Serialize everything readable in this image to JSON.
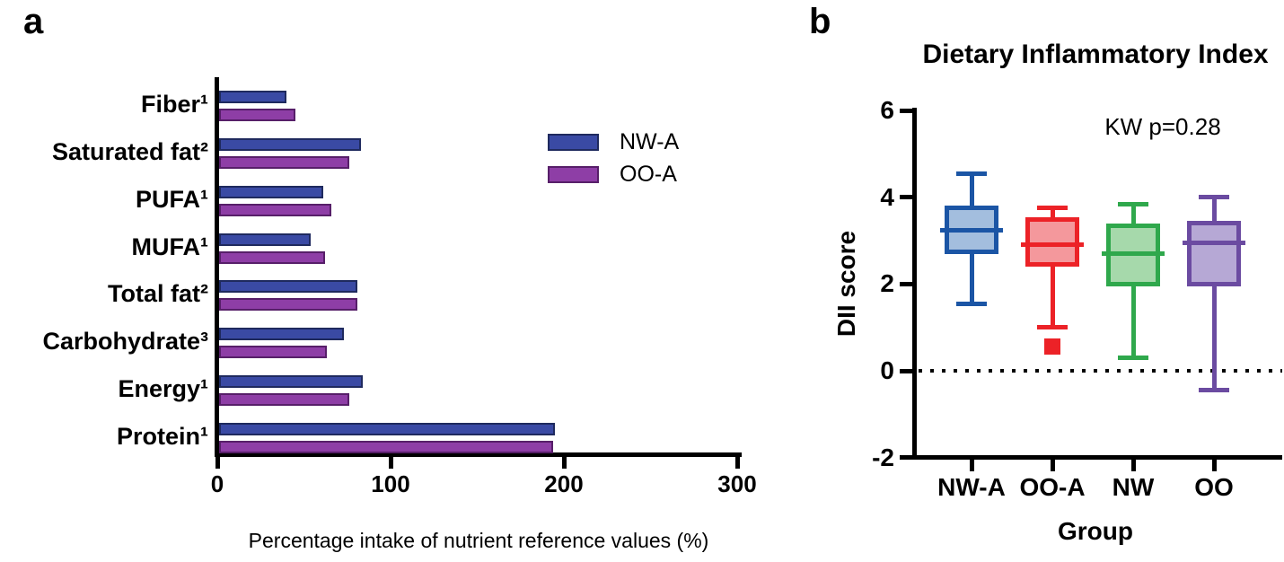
{
  "panels": {
    "a": "a",
    "b": "b"
  },
  "chart_data": [
    {
      "type": "bar",
      "panel": "a",
      "orientation": "horizontal",
      "title": "",
      "xlabel": "Percentage intake of nutrient reference values (%)",
      "xlim": [
        0,
        300
      ],
      "xticks": [
        "0",
        "100",
        "200",
        "300"
      ],
      "categories": [
        "Fiber¹",
        "Saturated fat²",
        "PUFA¹",
        "MUFA¹",
        "Total fat²",
        "Carbohydrate³",
        "Energy¹",
        "Protein¹"
      ],
      "series": [
        {
          "name": "NW-A",
          "color": "#3A4AA4",
          "edge": "#1F2A5E",
          "values": [
            40,
            83,
            61,
            54,
            81,
            73,
            84,
            195
          ]
        },
        {
          "name": "OO-A",
          "color": "#8E3EA6",
          "edge": "#571F69",
          "values": [
            45,
            76,
            66,
            62,
            81,
            63,
            76,
            194
          ]
        }
      ],
      "legend_position": "upper right",
      "grid": false
    },
    {
      "type": "box",
      "panel": "b",
      "title": "Dietary Inflammatory Index",
      "annotation": "KW p=0.28",
      "xlabel": "Group",
      "ylabel": "DII score",
      "ylim": [
        -2,
        6
      ],
      "yticks": [
        "6",
        "4",
        "2",
        "0",
        "-2"
      ],
      "zero_line": {
        "value": 0,
        "style": "dotted"
      },
      "groups": [
        {
          "name": "NW-A",
          "stroke": "#1B55A5",
          "fill": "#A3BEDE",
          "whisker_low": 1.55,
          "q1": 2.7,
          "median": 3.25,
          "q3": 3.8,
          "whisker_high": 4.55,
          "outliers": []
        },
        {
          "name": "OO-A",
          "stroke": "#EC2227",
          "fill": "#F4989C",
          "whisker_low": 1.0,
          "q1": 2.4,
          "median": 2.9,
          "q3": 3.55,
          "whisker_high": 3.75,
          "outliers": [
            0.55
          ]
        },
        {
          "name": "NW",
          "stroke": "#2FA84C",
          "fill": "#A6D9AB",
          "whisker_low": 0.3,
          "q1": 1.95,
          "median": 2.7,
          "q3": 3.4,
          "whisker_high": 3.85,
          "outliers": []
        },
        {
          "name": "OO",
          "stroke": "#6B4BA1",
          "fill": "#B6A8D5",
          "whisker_low": -0.45,
          "q1": 1.95,
          "median": 2.95,
          "q3": 3.45,
          "whisker_high": 4.0,
          "outliers": []
        }
      ],
      "grid": false
    }
  ]
}
